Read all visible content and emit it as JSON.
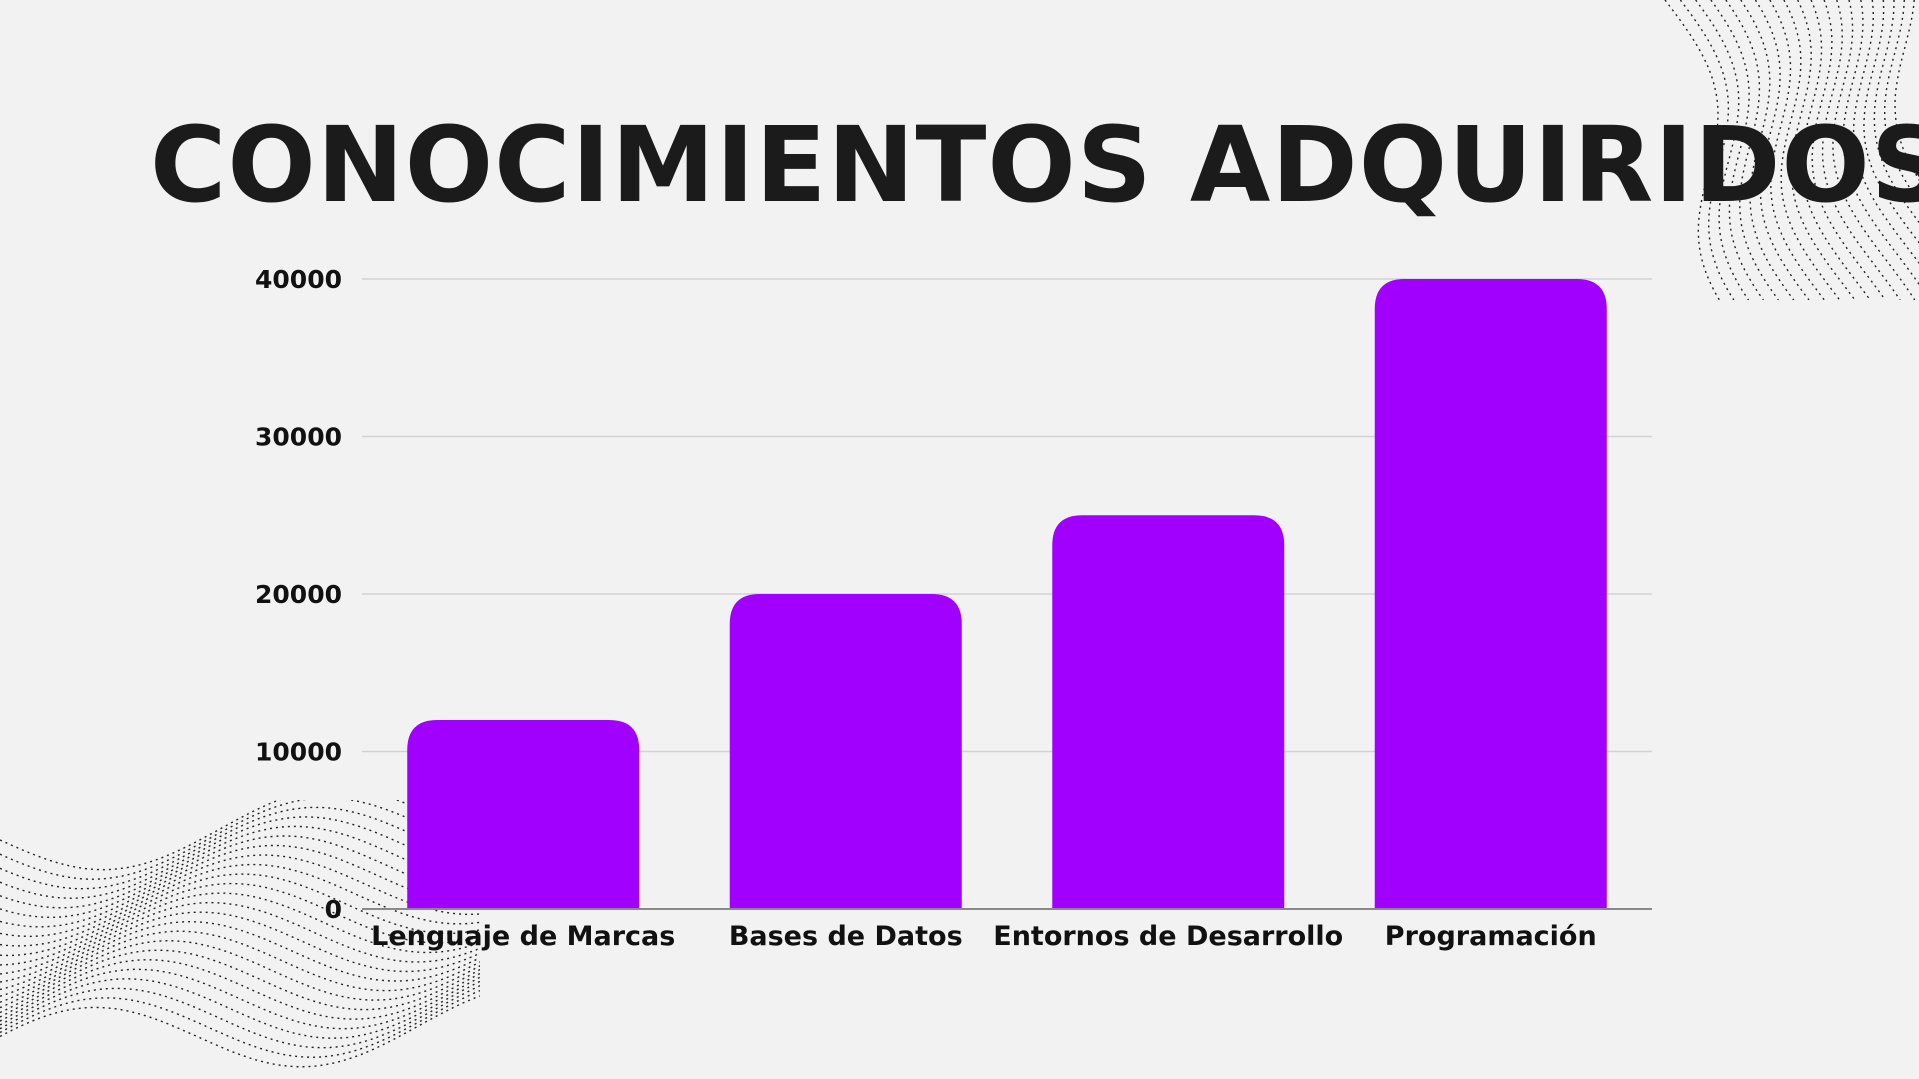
{
  "title": "CONOCIMIENTOS ADQUIRIDOS",
  "chart_data": {
    "type": "bar",
    "categories": [
      "Lenguaje de Marcas",
      "Bases de Datos",
      "Entornos de Desarrollo",
      "Programación"
    ],
    "values": [
      12000,
      20000,
      25000,
      40000
    ],
    "ylim": [
      0,
      40000
    ],
    "yticks": [
      0,
      10000,
      20000,
      30000,
      40000
    ],
    "grid": true,
    "bar_color": "#a100ff",
    "grid_color": "#d2d2d2",
    "axis_color": "#8a8a8a"
  }
}
